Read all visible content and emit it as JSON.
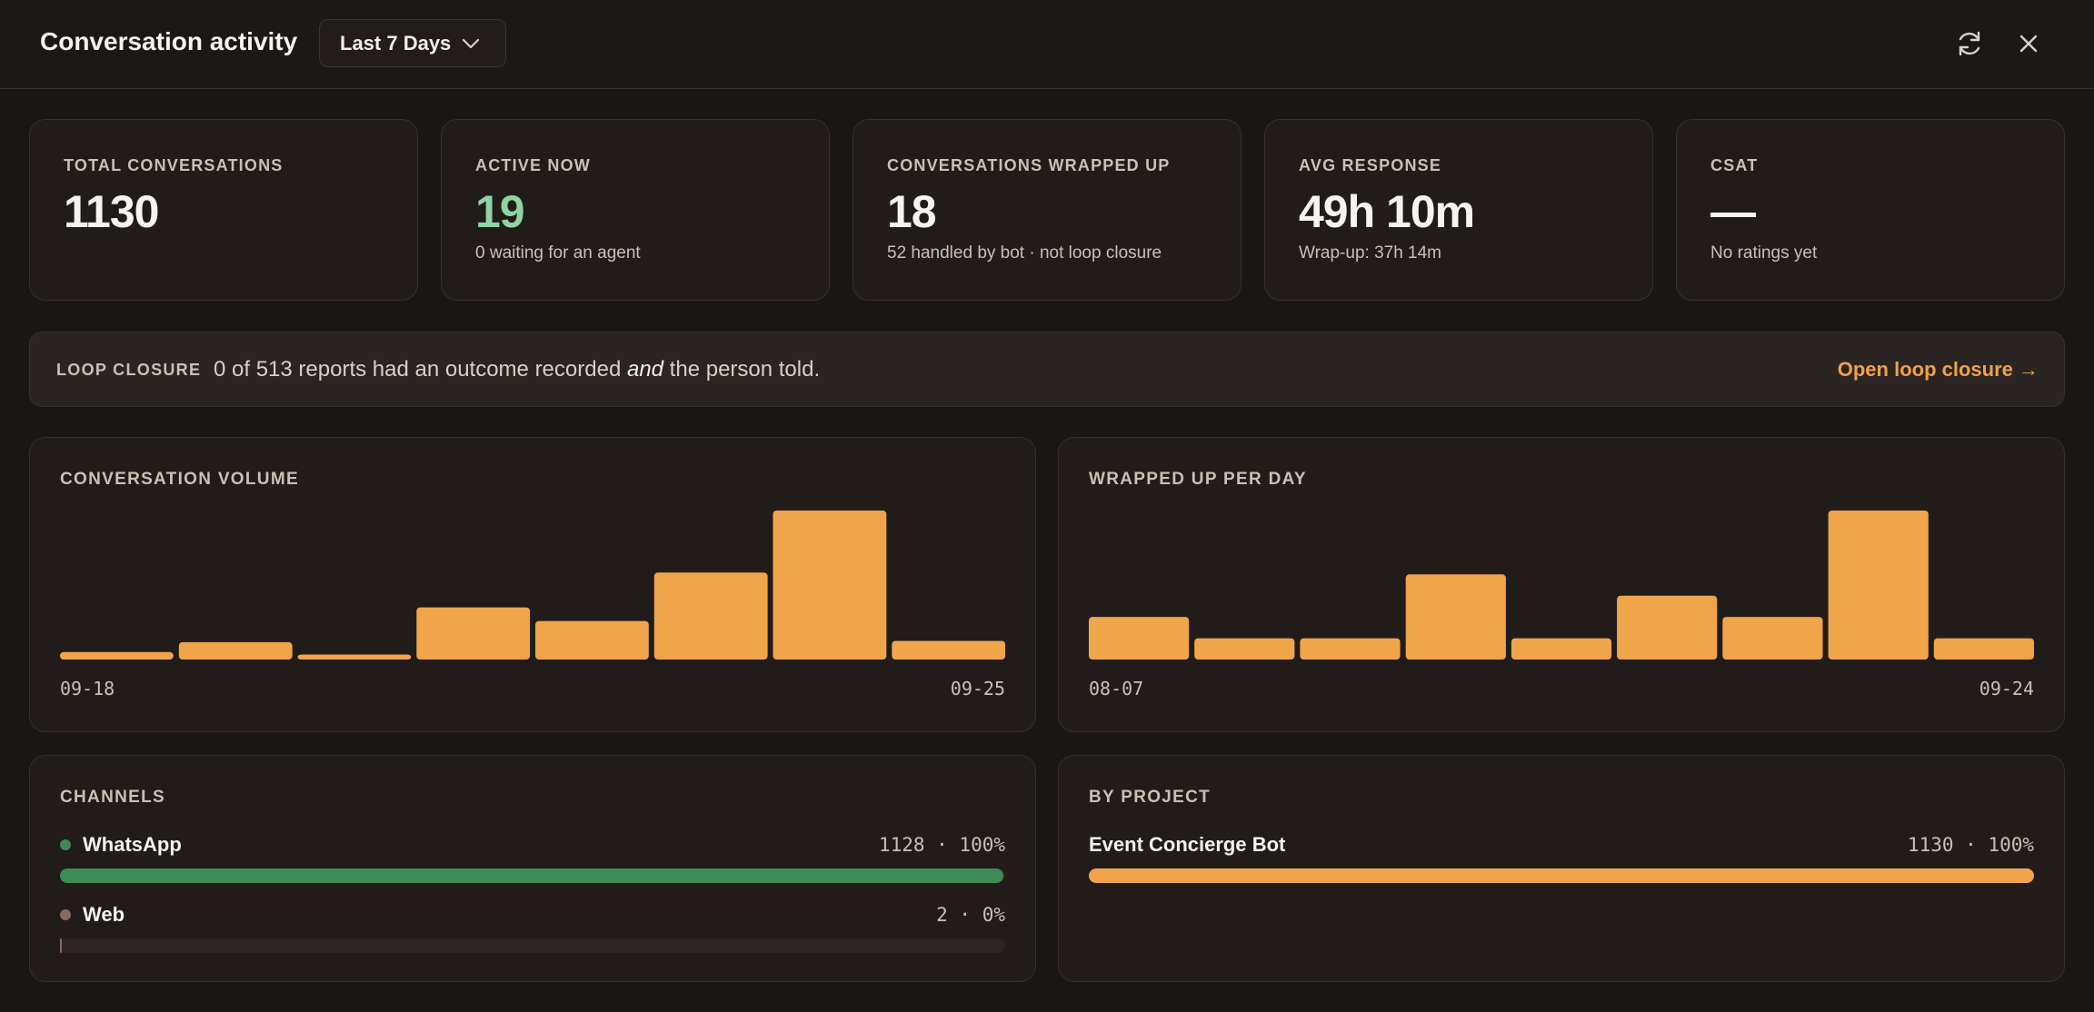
{
  "header": {
    "title": "Conversation activity",
    "range_label": "Last 7 Days"
  },
  "stats": [
    {
      "label": "TOTAL CONVERSATIONS",
      "value": "1130",
      "sub": ""
    },
    {
      "label": "ACTIVE NOW",
      "value": "19",
      "sub": "0 waiting for an agent"
    },
    {
      "label": "CONVERSATIONS WRAPPED UP",
      "value": "18",
      "sub": "52 handled by bot · not loop closure"
    },
    {
      "label": "AVG RESPONSE",
      "value": "49h 10m",
      "sub": "Wrap-up: 37h 14m"
    },
    {
      "label": "CSAT",
      "value": "—",
      "sub": "No ratings yet"
    }
  ],
  "loop_closure": {
    "label": "LOOP CLOSURE",
    "text_before": "0 of 513 reports had an outcome recorded ",
    "text_em": "and",
    "text_after": " the person told.",
    "link": "Open loop closure →"
  },
  "colors": {
    "accent": "#f0a54b",
    "active_green": "#8fd4a3",
    "whatsapp": "#3f8a57",
    "web": "#8a6a5e"
  },
  "chart_data": [
    {
      "type": "bar",
      "title": "CONVERSATION VOLUME",
      "x_start_label": "09-18",
      "x_end_label": "09-25",
      "values": [
        6,
        14,
        4,
        42,
        31,
        70,
        120,
        15
      ],
      "ylim": [
        0,
        120
      ]
    },
    {
      "type": "bar",
      "title": "WRAPPED UP PER DAY",
      "x_start_label": "08-07",
      "x_end_label": "09-24",
      "values": [
        2,
        1,
        1,
        4,
        1,
        3,
        2,
        7,
        1
      ],
      "ylim": [
        0,
        7
      ]
    }
  ],
  "channels": {
    "title": "CHANNELS",
    "items": [
      {
        "name": "WhatsApp",
        "stat": "1128 · 100%",
        "fraction": 0.998
      },
      {
        "name": "Web",
        "stat": "2 · 0%",
        "fraction": 0.002
      }
    ]
  },
  "projects": {
    "title": "BY PROJECT",
    "items": [
      {
        "name": "Event Concierge Bot",
        "stat": "1130 · 100%",
        "fraction": 1.0
      }
    ]
  }
}
